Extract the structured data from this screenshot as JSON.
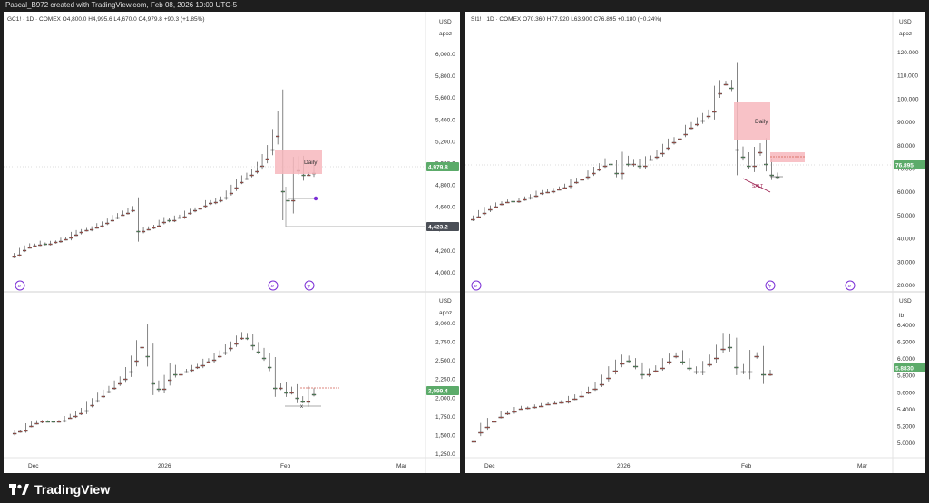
{
  "header": {
    "credit": "Pascal_B972 created with TradingView.com, Feb 08, 2026 10:00 UTC-5"
  },
  "footer": {
    "logo_text": "TradingView"
  },
  "colors": {
    "up": "#5cab6a",
    "down": "#d25c52",
    "bear_dark": "#444444",
    "accent": "#7b2fd6",
    "zone": "#f7b7bd"
  },
  "left_chart": {
    "title": "GC1! · 1D · COMEX  O4,800.0  H4,995.6  L4,670.0  C4,979.8  +90.3 (+1.85%)",
    "currency": "USD",
    "scale_label": "apoz",
    "price_ticks": [
      "6,000.0",
      "5,800.0",
      "5,600.0",
      "5,400.0",
      "5,200.0",
      "5,000.0",
      "4,800.0",
      "4,600.0",
      "4,400.0",
      "4,200.0",
      "4,000.0"
    ],
    "price_badge": "4,979.8",
    "level_badge": "4,423.2",
    "zone_label": "Daily",
    "lower": {
      "currency": "USD",
      "scale_label": "apoz",
      "ticks": [
        "3,000.0",
        "2,750.0",
        "2,500.0",
        "2,250.0",
        "2,000.0",
        "1,750.0",
        "1,500.0",
        "1,250.0"
      ],
      "price_badge": "2,099.4",
      "marker": "x"
    },
    "x_ticks": [
      "Dec",
      "2026",
      "Feb",
      "Mar"
    ]
  },
  "right_chart": {
    "title": "SI1! · 1D · COMEX  O70.360  H77.920  L63.900  C76.895  +0.180 (+0.24%)",
    "currency": "USD",
    "scale_label": "apoz",
    "price_ticks": [
      "120.000",
      "110.000",
      "100.000",
      "90.000",
      "80.000",
      "70.000",
      "60.000",
      "50.000",
      "40.000",
      "30.000",
      "20.000"
    ],
    "price_badge": "76.895",
    "zone_label": "Daily",
    "line_label": "SALT",
    "lower": {
      "currency": "USD",
      "scale_label": "lb",
      "ticks": [
        "6.4000",
        "6.2000",
        "6.0000",
        "5.8000",
        "5.6000",
        "5.4000",
        "5.2000",
        "5.0000"
      ],
      "price_badge": "5.8830"
    },
    "x_ticks": [
      "Dec",
      "2026",
      "Feb",
      "Mar"
    ]
  }
}
